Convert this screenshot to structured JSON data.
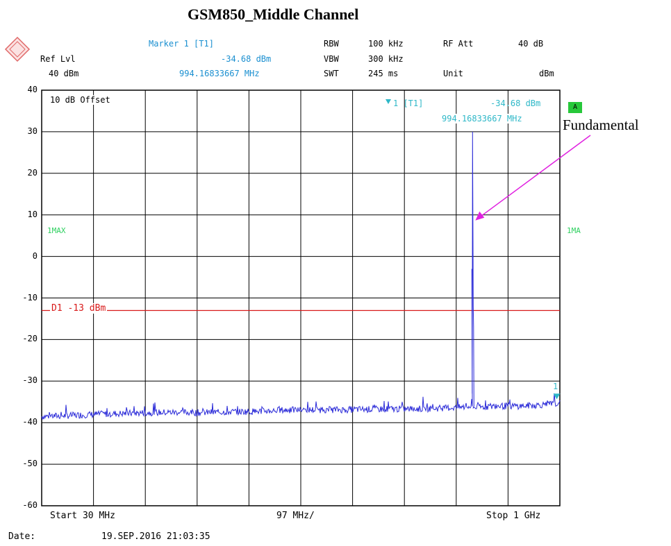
{
  "title": "GSM850_Middle Channel",
  "header": {
    "ref_lvl_label": "Ref Lvl",
    "ref_lvl_value": "40 dBm",
    "marker_label": "Marker 1 [T1]",
    "marker_level": "-34.68 dBm",
    "marker_freq": "994.16833667 MHz",
    "rbw_label": "RBW",
    "rbw_value": "100 kHz",
    "vbw_label": "VBW",
    "vbw_value": "300 kHz",
    "swt_label": "SWT",
    "swt_value": "245 ms",
    "rfatt_label": "RF Att",
    "rfatt_value": "40 dB",
    "unit_label": "Unit",
    "unit_value": "dBm"
  },
  "inplot": {
    "offset_label": "10 dB Offset",
    "marker_tag": "1 [T1]",
    "marker_level": "-34.68 dBm",
    "marker_freq": "994.16833667 MHz",
    "trace_label_left": "1MAX",
    "trace_label_right": "1MA",
    "badge": "A",
    "limit_label": "D1 -13 dBm",
    "marker_number": "1"
  },
  "annotation": "Fundamental",
  "footer": {
    "start": "Start 30 MHz",
    "center": "97 MHz/",
    "stop": "Stop 1 GHz",
    "date_label": "Date:",
    "date_value": "19.SEP.2016  21:03:35"
  },
  "colors": {
    "trace": "#2a2ad8",
    "limit_line": "#d81818",
    "marker": "#2fb8c8",
    "arrow": "#e020e0",
    "grid": "#000000"
  },
  "chart_data": {
    "type": "line",
    "title": "GSM850_Middle Channel",
    "xlabel": "",
    "ylabel": "",
    "xlim": [
      30,
      1000
    ],
    "ylim": [
      -60,
      40
    ],
    "x_unit": "MHz",
    "y_unit": "dBm",
    "yticks": [
      "40",
      "30",
      "20",
      "10",
      "0",
      "-10",
      "-20",
      "-30",
      "-40",
      "-50",
      "-60"
    ],
    "grid": true,
    "limit_line": {
      "name": "D1 -13 dBm",
      "value": -13
    },
    "marker": {
      "name": "1 [T1]",
      "x": 994.16833667,
      "y": -34.68
    },
    "peak": {
      "x": 836.6,
      "y": 30
    },
    "series": [
      {
        "name": "1MAX",
        "x": [
          30,
          80,
          130,
          180,
          230,
          280,
          330,
          380,
          430,
          480,
          530,
          580,
          630,
          680,
          730,
          780,
          830,
          836.6,
          845,
          880,
          930,
          980,
          1000
        ],
        "y": [
          -38.5,
          -38.3,
          -38.0,
          -37.8,
          -37.6,
          -37.5,
          -37.6,
          -37.4,
          -37.3,
          -37.0,
          -36.9,
          -36.9,
          -36.8,
          -36.7,
          -36.7,
          -36.5,
          -36.2,
          30,
          -36.3,
          -36.0,
          -36.0,
          -35.6,
          -35.3
        ]
      }
    ]
  }
}
